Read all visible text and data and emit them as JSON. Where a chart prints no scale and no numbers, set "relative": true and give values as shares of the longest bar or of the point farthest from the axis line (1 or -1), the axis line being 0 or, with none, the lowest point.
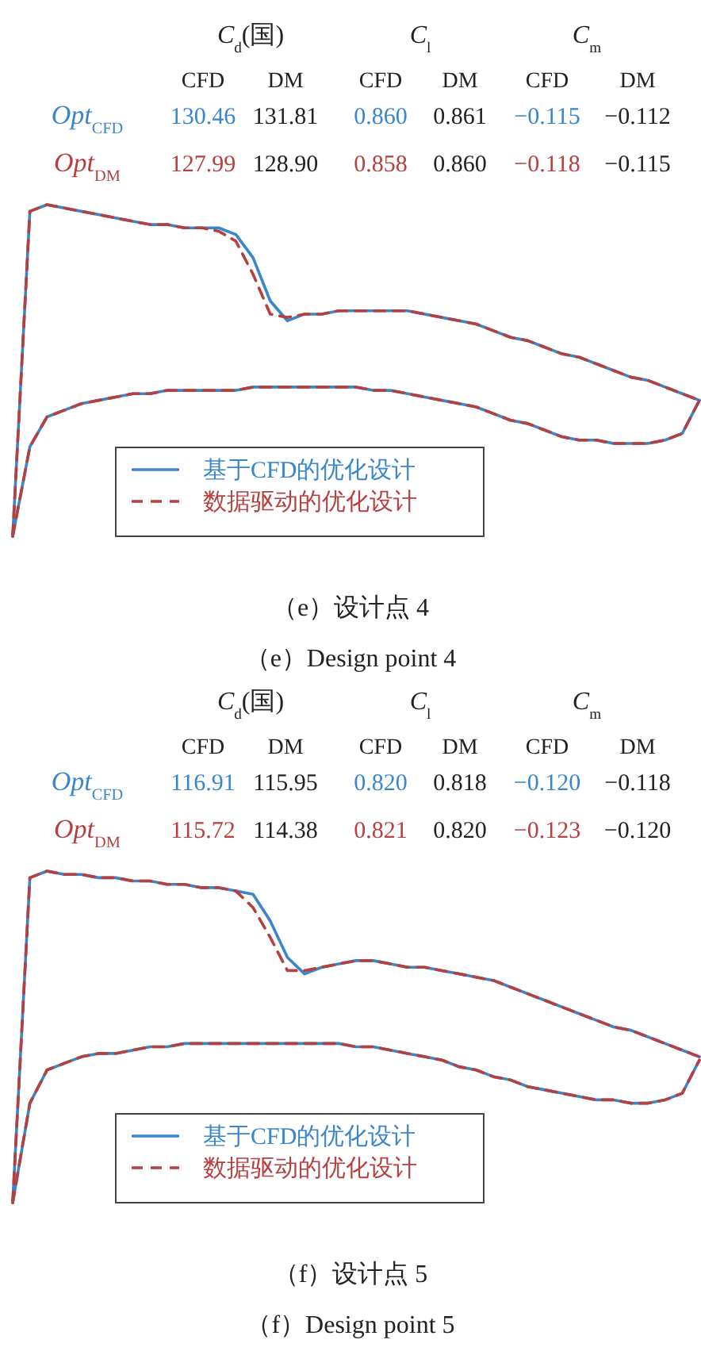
{
  "chart_data": [
    {
      "type": "line",
      "relative": true,
      "legend": "bottom",
      "categories": [
        null,
        null,
        null,
        null,
        null,
        null,
        null,
        null,
        null,
        null,
        null,
        null,
        null,
        null,
        null,
        null,
        null,
        null,
        null,
        null,
        null,
        null,
        null,
        null,
        null,
        null,
        null,
        null,
        null,
        null,
        null,
        null,
        null,
        null,
        null,
        null,
        null,
        null,
        null,
        null,
        null
      ],
      "series": [
        {
          "name": "基于CFD的优化设计",
          "color": "#3a86cc",
          "line_style": "solid",
          "values": [
            0,
            0.98,
            1.0,
            0.99,
            0.98,
            0.97,
            0.96,
            0.95,
            0.94,
            0.94,
            0.93,
            0.93,
            0.93,
            0.91,
            0.84,
            0.71,
            0.65,
            0.67,
            0.67,
            0.68,
            0.68,
            0.68,
            0.68,
            0.68,
            0.67,
            0.66,
            0.65,
            0.64,
            0.62,
            0.6,
            0.59,
            0.57,
            0.55,
            0.54,
            0.52,
            0.5,
            0.48,
            0.47,
            0.45,
            0.43,
            0.41
          ]
        },
        {
          "color": "#3a86cc",
          "line_style": "solid",
          "values": [
            0,
            0.27,
            0.36,
            0.38,
            0.4,
            0.41,
            0.42,
            0.43,
            0.43,
            0.44,
            0.44,
            0.44,
            0.44,
            0.44,
            0.45,
            0.45,
            0.45,
            0.45,
            0.45,
            0.45,
            0.45,
            0.44,
            0.44,
            0.43,
            0.42,
            0.41,
            0.4,
            0.39,
            0.37,
            0.35,
            0.34,
            0.32,
            0.3,
            0.29,
            0.29,
            0.28,
            0.28,
            0.28,
            0.29,
            0.31,
            0.41
          ]
        },
        {
          "name": "数据驱动的优化设计",
          "color": "#b5403f",
          "line_style": "dashed",
          "values": [
            0,
            0.98,
            1.0,
            0.99,
            0.98,
            0.97,
            0.96,
            0.95,
            0.94,
            0.94,
            0.93,
            0.93,
            0.92,
            0.89,
            0.79,
            0.67,
            0.66,
            0.67,
            0.67,
            0.68,
            0.68,
            0.68,
            0.68,
            0.68,
            0.67,
            0.66,
            0.65,
            0.64,
            0.62,
            0.6,
            0.59,
            0.57,
            0.55,
            0.54,
            0.52,
            0.5,
            0.48,
            0.47,
            0.45,
            0.43,
            0.41
          ]
        },
        {
          "color": "#b5403f",
          "line_style": "dashed",
          "values": [
            0,
            0.27,
            0.36,
            0.38,
            0.4,
            0.41,
            0.42,
            0.43,
            0.43,
            0.44,
            0.44,
            0.44,
            0.44,
            0.44,
            0.45,
            0.45,
            0.45,
            0.45,
            0.45,
            0.45,
            0.45,
            0.44,
            0.44,
            0.43,
            0.42,
            0.41,
            0.4,
            0.39,
            0.37,
            0.35,
            0.34,
            0.32,
            0.3,
            0.29,
            0.29,
            0.28,
            0.28,
            0.28,
            0.29,
            0.31,
            0.41
          ]
        }
      ],
      "annotations": [
        "C$_{d}$(国)",
        "C$_{l}$",
        "C$_{m}$",
        "CFD",
        "DM",
        "CFD",
        "DM",
        "CFD",
        "DM",
        "Opt$_{CFD}$",
        "130.46",
        "131.81",
        "0.860",
        "0.861",
        "−0.115",
        "−0.112",
        "Opt$_{DM}$",
        "127.99",
        "128.90",
        "0.858",
        "0.860",
        "−0.118",
        "−0.115",
        "（e）设计点 4",
        "（e）Design point 4"
      ]
    },
    {
      "type": "line",
      "relative": true,
      "legend": "bottom",
      "categories": [
        null,
        null,
        null,
        null,
        null,
        null,
        null,
        null,
        null,
        null,
        null,
        null,
        null,
        null,
        null,
        null,
        null,
        null,
        null,
        null,
        null,
        null,
        null,
        null,
        null,
        null,
        null,
        null,
        null,
        null,
        null,
        null,
        null,
        null,
        null,
        null,
        null,
        null,
        null,
        null,
        null
      ],
      "series": [
        {
          "name": "基于CFD的优化设计",
          "color": "#3a86cc",
          "line_style": "solid",
          "values": [
            0,
            0.98,
            1.0,
            0.99,
            0.99,
            0.98,
            0.98,
            0.97,
            0.97,
            0.96,
            0.96,
            0.95,
            0.95,
            0.94,
            0.93,
            0.85,
            0.74,
            0.69,
            0.71,
            0.72,
            0.73,
            0.73,
            0.72,
            0.71,
            0.71,
            0.7,
            0.69,
            0.68,
            0.67,
            0.65,
            0.63,
            0.61,
            0.59,
            0.57,
            0.55,
            0.53,
            0.52,
            0.5,
            0.48,
            0.46,
            0.44
          ]
        },
        {
          "color": "#3a86cc",
          "line_style": "solid",
          "values": [
            0,
            0.3,
            0.4,
            0.42,
            0.44,
            0.45,
            0.45,
            0.46,
            0.47,
            0.47,
            0.48,
            0.48,
            0.48,
            0.48,
            0.48,
            0.48,
            0.48,
            0.48,
            0.48,
            0.48,
            0.47,
            0.47,
            0.46,
            0.45,
            0.44,
            0.43,
            0.41,
            0.4,
            0.38,
            0.37,
            0.35,
            0.34,
            0.33,
            0.32,
            0.31,
            0.31,
            0.3,
            0.3,
            0.31,
            0.33,
            0.43
          ]
        },
        {
          "name": "数据驱动的优化设计",
          "color": "#b5403f",
          "line_style": "dashed",
          "values": [
            0,
            0.98,
            1.0,
            0.99,
            0.99,
            0.98,
            0.98,
            0.97,
            0.97,
            0.96,
            0.96,
            0.95,
            0.95,
            0.94,
            0.89,
            0.8,
            0.7,
            0.7,
            0.71,
            0.72,
            0.73,
            0.73,
            0.72,
            0.71,
            0.71,
            0.7,
            0.69,
            0.68,
            0.67,
            0.65,
            0.63,
            0.61,
            0.59,
            0.57,
            0.55,
            0.53,
            0.52,
            0.5,
            0.48,
            0.46,
            0.44
          ]
        },
        {
          "color": "#b5403f",
          "line_style": "dashed",
          "values": [
            0,
            0.3,
            0.4,
            0.42,
            0.44,
            0.45,
            0.45,
            0.46,
            0.47,
            0.47,
            0.48,
            0.48,
            0.48,
            0.48,
            0.48,
            0.48,
            0.48,
            0.48,
            0.48,
            0.48,
            0.47,
            0.47,
            0.46,
            0.45,
            0.44,
            0.43,
            0.41,
            0.4,
            0.38,
            0.37,
            0.35,
            0.34,
            0.33,
            0.32,
            0.31,
            0.31,
            0.3,
            0.3,
            0.31,
            0.33,
            0.43
          ]
        }
      ],
      "annotations": [
        "C$_{d}$(国)",
        "C$_{l}$",
        "C$_{m}$",
        "CFD",
        "DM",
        "CFD",
        "DM",
        "CFD",
        "DM",
        "Opt$_{CFD}$",
        "116.91",
        "115.95",
        "0.820",
        "0.818",
        "−0.120",
        "−0.118",
        "Opt$_{DM}$",
        "115.72",
        "114.38",
        "0.821",
        "0.820",
        "−0.123",
        "−0.120",
        "（f）设计点 5",
        "（f）Design point 5"
      ]
    }
  ]
}
